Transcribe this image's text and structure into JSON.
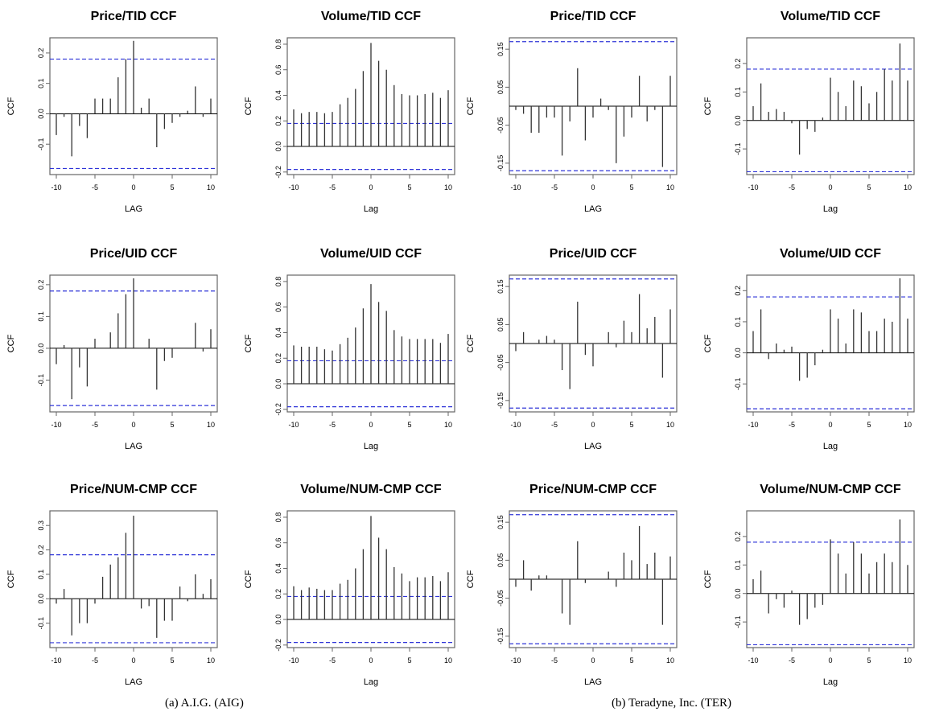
{
  "colors": {
    "stem": "#333333",
    "bound": "#2f34d8",
    "frame": "#666666",
    "text": "#000000"
  },
  "captions": {
    "a": "(a) A.I.G. (AIG)",
    "b": "(b) Teradyne, Inc. (TER)"
  },
  "chart_data": [
    {
      "type": "bar",
      "panel": "AIG",
      "title": "Price/TID CCF",
      "xlabel": "LAG",
      "ylabel": "CCF",
      "xlim": [
        -10,
        10
      ],
      "ylim": [
        -0.2,
        0.25
      ],
      "xticks": [
        -10,
        -5,
        0,
        5,
        10
      ],
      "xtick_labels": [
        "-10",
        "-5",
        "0",
        "5",
        "10"
      ],
      "yticks": [
        -0.1,
        0,
        0.1,
        0.2
      ],
      "ytick_labels": [
        "-0.1",
        "0.0",
        "0.1",
        "0.2"
      ],
      "confidence_bounds": [
        -0.18,
        0.18
      ],
      "grid": false,
      "x": [
        -10,
        -9,
        -8,
        -7,
        -6,
        -5,
        -4,
        -3,
        -2,
        -1,
        0,
        1,
        2,
        3,
        4,
        5,
        6,
        7,
        8,
        9,
        10
      ],
      "values": [
        -0.07,
        -0.01,
        -0.14,
        -0.04,
        -0.08,
        0.05,
        0.05,
        0.05,
        0.12,
        0.18,
        0.24,
        0.02,
        0.05,
        -0.11,
        -0.05,
        -0.03,
        -0.01,
        0.01,
        0.09,
        -0.01,
        0.05
      ]
    },
    {
      "type": "bar",
      "panel": "AIG",
      "title": "Volume/TID CCF",
      "xlabel": "Lag",
      "ylabel": "CCF",
      "xlim": [
        -10,
        10
      ],
      "ylim": [
        -0.22,
        0.85
      ],
      "xticks": [
        -10,
        -5,
        0,
        5,
        10
      ],
      "xtick_labels": [
        "-10",
        "-5",
        "0",
        "5",
        "10"
      ],
      "yticks": [
        -0.2,
        0,
        0.2,
        0.4,
        0.6,
        0.8
      ],
      "ytick_labels": [
        "-0.2",
        "0.0",
        "0.2",
        "0.4",
        "0.6",
        "0.8"
      ],
      "confidence_bounds": [
        -0.18,
        0.18
      ],
      "grid": false,
      "x": [
        -10,
        -9,
        -8,
        -7,
        -6,
        -5,
        -4,
        -3,
        -2,
        -1,
        0,
        1,
        2,
        3,
        4,
        5,
        6,
        7,
        8,
        9,
        10
      ],
      "values": [
        0.29,
        0.26,
        0.27,
        0.27,
        0.26,
        0.27,
        0.33,
        0.38,
        0.45,
        0.59,
        0.81,
        0.67,
        0.6,
        0.48,
        0.41,
        0.4,
        0.4,
        0.41,
        0.42,
        0.38,
        0.44
      ]
    },
    {
      "type": "bar",
      "panel": "TER",
      "title": "Price/TID CCF",
      "xlabel": "LAG",
      "ylabel": "CCF",
      "xlim": [
        -10,
        10
      ],
      "ylim": [
        -0.18,
        0.18
      ],
      "xticks": [
        -10,
        -5,
        0,
        5,
        10
      ],
      "xtick_labels": [
        "-10",
        "-5",
        "0",
        "5",
        "10"
      ],
      "yticks": [
        -0.15,
        -0.05,
        0.05,
        0.15
      ],
      "ytick_labels": [
        "-0.15",
        "-0.05",
        "0.05",
        "0.15"
      ],
      "confidence_bounds": [
        -0.17,
        0.17
      ],
      "grid": false,
      "x": [
        -10,
        -9,
        -8,
        -7,
        -6,
        -5,
        -4,
        -3,
        -2,
        -1,
        0,
        1,
        2,
        3,
        4,
        5,
        6,
        7,
        8,
        9,
        10
      ],
      "values": [
        -0.01,
        -0.02,
        -0.07,
        -0.07,
        -0.03,
        -0.03,
        -0.13,
        -0.04,
        0.1,
        -0.09,
        -0.03,
        0.02,
        -0.01,
        -0.15,
        -0.08,
        -0.03,
        0.08,
        -0.04,
        -0.01,
        -0.16,
        0.08
      ]
    },
    {
      "type": "bar",
      "panel": "TER",
      "title": "Volume/TID CCF",
      "xlabel": "Lag",
      "ylabel": "CCF",
      "xlim": [
        -10,
        10
      ],
      "ylim": [
        -0.19,
        0.29
      ],
      "xticks": [
        -10,
        -5,
        0,
        5,
        10
      ],
      "xtick_labels": [
        "-10",
        "-5",
        "0",
        "5",
        "10"
      ],
      "yticks": [
        -0.1,
        0,
        0.1,
        0.2
      ],
      "ytick_labels": [
        "-0.1",
        "0.0",
        "0.1",
        "0.2"
      ],
      "confidence_bounds": [
        -0.18,
        0.18
      ],
      "grid": false,
      "x": [
        -10,
        -9,
        -8,
        -7,
        -6,
        -5,
        -4,
        -3,
        -2,
        -1,
        0,
        1,
        2,
        3,
        4,
        5,
        6,
        7,
        8,
        9,
        10
      ],
      "values": [
        0.05,
        0.13,
        0.03,
        0.04,
        0.03,
        -0.01,
        -0.12,
        -0.03,
        -0.04,
        0.01,
        0.15,
        0.1,
        0.05,
        0.14,
        0.12,
        0.06,
        0.1,
        0.18,
        0.14,
        0.27,
        0.14
      ]
    },
    {
      "type": "bar",
      "panel": "AIG",
      "title": "Price/UID CCF",
      "xlabel": "LAG",
      "ylabel": "CCF",
      "xlim": [
        -10,
        10
      ],
      "ylim": [
        -0.2,
        0.23
      ],
      "xticks": [
        -10,
        -5,
        0,
        5,
        10
      ],
      "xtick_labels": [
        "-10",
        "-5",
        "0",
        "5",
        "10"
      ],
      "yticks": [
        -0.1,
        0,
        0.1,
        0.2
      ],
      "ytick_labels": [
        "-0.1",
        "0.0",
        "0.1",
        "0.2"
      ],
      "confidence_bounds": [
        -0.18,
        0.18
      ],
      "grid": false,
      "x": [
        -10,
        -9,
        -8,
        -7,
        -6,
        -5,
        -4,
        -3,
        -2,
        -1,
        0,
        1,
        2,
        3,
        4,
        5,
        6,
        7,
        8,
        9,
        10
      ],
      "values": [
        -0.05,
        0.01,
        -0.16,
        -0.06,
        -0.12,
        0.03,
        0.0,
        0.05,
        0.11,
        0.17,
        0.22,
        0.0,
        0.03,
        -0.13,
        -0.04,
        -0.03,
        0.0,
        0.0,
        0.08,
        -0.01,
        0.06
      ]
    },
    {
      "type": "bar",
      "panel": "AIG",
      "title": "Volume/UID CCF",
      "xlabel": "Lag",
      "ylabel": "CCF",
      "xlim": [
        -10,
        10
      ],
      "ylim": [
        -0.22,
        0.85
      ],
      "xticks": [
        -10,
        -5,
        0,
        5,
        10
      ],
      "xtick_labels": [
        "-10",
        "-5",
        "0",
        "5",
        "10"
      ],
      "yticks": [
        -0.2,
        0,
        0.2,
        0.4,
        0.6,
        0.8
      ],
      "ytick_labels": [
        "-0.2",
        "0.0",
        "0.2",
        "0.4",
        "0.6",
        "0.8"
      ],
      "confidence_bounds": [
        -0.18,
        0.18
      ],
      "grid": false,
      "x": [
        -10,
        -9,
        -8,
        -7,
        -6,
        -5,
        -4,
        -3,
        -2,
        -1,
        0,
        1,
        2,
        3,
        4,
        5,
        6,
        7,
        8,
        9,
        10
      ],
      "values": [
        0.3,
        0.29,
        0.29,
        0.29,
        0.27,
        0.26,
        0.31,
        0.36,
        0.44,
        0.59,
        0.78,
        0.64,
        0.57,
        0.42,
        0.37,
        0.35,
        0.35,
        0.35,
        0.35,
        0.32,
        0.39
      ]
    },
    {
      "type": "bar",
      "panel": "TER",
      "title": "Price/UID CCF",
      "xlabel": "LAG",
      "ylabel": "CCF",
      "xlim": [
        -10,
        10
      ],
      "ylim": [
        -0.18,
        0.18
      ],
      "xticks": [
        -10,
        -5,
        0,
        5,
        10
      ],
      "xtick_labels": [
        "-10",
        "-5",
        "0",
        "5",
        "10"
      ],
      "yticks": [
        -0.15,
        -0.05,
        0.05,
        0.15
      ],
      "ytick_labels": [
        "-0.15",
        "-0.05",
        "0.05",
        "0.15"
      ],
      "confidence_bounds": [
        -0.17,
        0.17
      ],
      "grid": false,
      "x": [
        -10,
        -9,
        -8,
        -7,
        -6,
        -5,
        -4,
        -3,
        -2,
        -1,
        0,
        1,
        2,
        3,
        4,
        5,
        6,
        7,
        8,
        9,
        10
      ],
      "values": [
        -0.02,
        0.03,
        0.0,
        0.01,
        0.02,
        0.01,
        -0.07,
        -0.12,
        0.11,
        -0.03,
        -0.06,
        0.0,
        0.03,
        -0.01,
        0.06,
        0.03,
        0.13,
        0.04,
        0.07,
        -0.09,
        0.09
      ]
    },
    {
      "type": "bar",
      "panel": "TER",
      "title": "Volume/UID CCF",
      "xlabel": "Lag",
      "ylabel": "CCF",
      "xlim": [
        -10,
        10
      ],
      "ylim": [
        -0.19,
        0.25
      ],
      "xticks": [
        -10,
        -5,
        0,
        5,
        10
      ],
      "xtick_labels": [
        "-10",
        "-5",
        "0",
        "5",
        "10"
      ],
      "yticks": [
        -0.1,
        0,
        0.1,
        0.2
      ],
      "ytick_labels": [
        "-0.1",
        "0.0",
        "0.1",
        "0.2"
      ],
      "confidence_bounds": [
        -0.18,
        0.18
      ],
      "grid": false,
      "x": [
        -10,
        -9,
        -8,
        -7,
        -6,
        -5,
        -4,
        -3,
        -2,
        -1,
        0,
        1,
        2,
        3,
        4,
        5,
        6,
        7,
        8,
        9,
        10
      ],
      "values": [
        0.07,
        0.14,
        -0.02,
        0.03,
        0.01,
        0.02,
        -0.09,
        -0.08,
        -0.04,
        0.01,
        0.14,
        0.11,
        0.03,
        0.14,
        0.13,
        0.07,
        0.07,
        0.11,
        0.1,
        0.24,
        0.11
      ]
    },
    {
      "type": "bar",
      "panel": "AIG",
      "title": "Price/NUM-CMP CCF",
      "xlabel": "LAG",
      "ylabel": "CCF",
      "xlim": [
        -10,
        10
      ],
      "ylim": [
        -0.2,
        0.36
      ],
      "xticks": [
        -10,
        -5,
        0,
        5,
        10
      ],
      "xtick_labels": [
        "-10",
        "-5",
        "0",
        "5",
        "10"
      ],
      "yticks": [
        -0.1,
        0,
        0.1,
        0.2,
        0.3
      ],
      "ytick_labels": [
        "-0.1",
        "0.0",
        "0.1",
        "0.2",
        "0.3"
      ],
      "confidence_bounds": [
        -0.18,
        0.18
      ],
      "grid": false,
      "x": [
        -10,
        -9,
        -8,
        -7,
        -6,
        -5,
        -4,
        -3,
        -2,
        -1,
        0,
        1,
        2,
        3,
        4,
        5,
        6,
        7,
        8,
        9,
        10
      ],
      "values": [
        -0.02,
        0.04,
        -0.15,
        -0.1,
        -0.1,
        -0.02,
        0.09,
        0.14,
        0.17,
        0.27,
        0.34,
        -0.04,
        -0.03,
        -0.16,
        -0.09,
        -0.09,
        0.05,
        -0.01,
        0.1,
        0.02,
        0.08
      ]
    },
    {
      "type": "bar",
      "panel": "AIG",
      "title": "Volume/NUM-CMP CCF",
      "xlabel": "Lag",
      "ylabel": "CCF",
      "xlim": [
        -10,
        10
      ],
      "ylim": [
        -0.22,
        0.85
      ],
      "xticks": [
        -10,
        -5,
        0,
        5,
        10
      ],
      "xtick_labels": [
        "-10",
        "-5",
        "0",
        "5",
        "10"
      ],
      "yticks": [
        -0.2,
        0,
        0.2,
        0.4,
        0.6,
        0.8
      ],
      "ytick_labels": [
        "-0.2",
        "0.0",
        "0.2",
        "0.4",
        "0.6",
        "0.8"
      ],
      "confidence_bounds": [
        -0.18,
        0.18
      ],
      "grid": false,
      "x": [
        -10,
        -9,
        -8,
        -7,
        -6,
        -5,
        -4,
        -3,
        -2,
        -1,
        0,
        1,
        2,
        3,
        4,
        5,
        6,
        7,
        8,
        9,
        10
      ],
      "values": [
        0.26,
        0.23,
        0.25,
        0.24,
        0.23,
        0.23,
        0.28,
        0.31,
        0.4,
        0.55,
        0.81,
        0.64,
        0.55,
        0.41,
        0.36,
        0.3,
        0.33,
        0.33,
        0.34,
        0.3,
        0.37
      ]
    },
    {
      "type": "bar",
      "panel": "TER",
      "title": "Price/NUM-CMP CCF",
      "xlabel": "LAG",
      "ylabel": "CCF",
      "xlim": [
        -10,
        10
      ],
      "ylim": [
        -0.18,
        0.18
      ],
      "xticks": [
        -10,
        -5,
        0,
        5,
        10
      ],
      "xtick_labels": [
        "-10",
        "-5",
        "0",
        "5",
        "10"
      ],
      "yticks": [
        -0.15,
        -0.05,
        0.05,
        0.15
      ],
      "ytick_labels": [
        "-0.15",
        "-0.05",
        "0.05",
        "0.15"
      ],
      "confidence_bounds": [
        -0.17,
        0.17
      ],
      "grid": false,
      "x": [
        -10,
        -9,
        -8,
        -7,
        -6,
        -5,
        -4,
        -3,
        -2,
        -1,
        0,
        1,
        2,
        3,
        4,
        5,
        6,
        7,
        8,
        9,
        10
      ],
      "values": [
        -0.02,
        0.05,
        -0.03,
        0.01,
        0.01,
        0.0,
        -0.09,
        -0.12,
        0.1,
        -0.01,
        0.0,
        0.0,
        0.02,
        -0.02,
        0.07,
        0.05,
        0.14,
        0.04,
        0.07,
        -0.12,
        0.06
      ]
    },
    {
      "type": "bar",
      "panel": "TER",
      "title": "Volume/NUM-CMP CCF",
      "xlabel": "Lag",
      "ylabel": "CCF",
      "xlim": [
        -10,
        10
      ],
      "ylim": [
        -0.19,
        0.29
      ],
      "xticks": [
        -10,
        -5,
        0,
        5,
        10
      ],
      "xtick_labels": [
        "-10",
        "-5",
        "0",
        "5",
        "10"
      ],
      "yticks": [
        -0.1,
        0,
        0.1,
        0.2
      ],
      "ytick_labels": [
        "-0.1",
        "0.0",
        "0.1",
        "0.2"
      ],
      "confidence_bounds": [
        -0.18,
        0.18
      ],
      "grid": false,
      "x": [
        -10,
        -9,
        -8,
        -7,
        -6,
        -5,
        -4,
        -3,
        -2,
        -1,
        0,
        1,
        2,
        3,
        4,
        5,
        6,
        7,
        8,
        9,
        10
      ],
      "values": [
        0.05,
        0.08,
        -0.07,
        -0.02,
        -0.05,
        0.01,
        -0.11,
        -0.09,
        -0.05,
        -0.04,
        0.19,
        0.14,
        0.07,
        0.18,
        0.14,
        0.07,
        0.11,
        0.14,
        0.11,
        0.26,
        0.1
      ]
    }
  ]
}
